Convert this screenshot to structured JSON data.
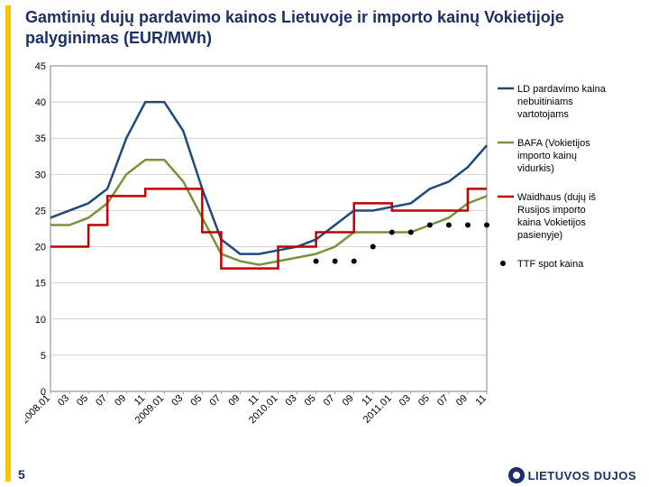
{
  "title": "Gamtinių dujų pardavimo kainos Lietuvoje ir importo kainų Vokietijoje palyginimas  (EUR/MWh)",
  "page_number": "5",
  "brand": "LIETUVOS DUJOS",
  "chart": {
    "type": "line",
    "background": "#ffffff",
    "plot_border_color": "#808080",
    "grid_color": "#bfbfbf",
    "text_color": "#000000",
    "axis_fontsize": 11,
    "legend_fontsize": 11,
    "y": {
      "min": 0,
      "max": 45,
      "step": 5
    },
    "x_labels": [
      "2008.01",
      "03",
      "05",
      "07",
      "09",
      "11",
      "2009.01",
      "03",
      "05",
      "07",
      "09",
      "11",
      "2010.01",
      "03",
      "05",
      "07",
      "09",
      "11",
      "2011.01",
      "03",
      "05",
      "07",
      "09",
      "11"
    ],
    "x_label_rotation": -45,
    "series": [
      {
        "name": "LD pardavimo kaina nebuitiniams vartotojams",
        "color": "#1f497d",
        "width": 2.5,
        "style": "line",
        "data": [
          24,
          25,
          26,
          28,
          35,
          40,
          40,
          36,
          28,
          21,
          19,
          19,
          19.5,
          20,
          21,
          23,
          25,
          25,
          25.5,
          26,
          28,
          29,
          31,
          34
        ]
      },
      {
        "name": "BAFA (Vokietijos importo kainų vidurkis)",
        "color": "#77933c",
        "width": 2.5,
        "style": "line",
        "data": [
          23,
          23,
          24,
          26,
          30,
          32,
          32,
          29,
          24,
          19,
          18,
          17.5,
          18,
          18.5,
          19,
          20,
          22,
          22,
          22,
          22,
          23,
          24,
          26,
          27
        ]
      },
      {
        "name": "Waidhaus (dujų iš Rusijos importo kaina Vokietijos pasienyje)",
        "color": "#c00000",
        "width": 2.5,
        "style": "step",
        "data": [
          20,
          20,
          23,
          27,
          27,
          28,
          28,
          28,
          22,
          17,
          17,
          17,
          20,
          20,
          22,
          22,
          26,
          26,
          25,
          25,
          25,
          25,
          28,
          28
        ]
      },
      {
        "name": "TTF spot kaina",
        "color": "#000000",
        "style": "scatter",
        "marker_size": 3,
        "data": [
          null,
          null,
          null,
          null,
          null,
          null,
          null,
          null,
          null,
          null,
          null,
          null,
          null,
          null,
          18,
          18,
          18,
          20,
          22,
          22,
          23,
          23,
          23,
          23
        ]
      }
    ],
    "legend": {
      "position": "right",
      "items_order": [
        0,
        1,
        2,
        3
      ]
    }
  }
}
